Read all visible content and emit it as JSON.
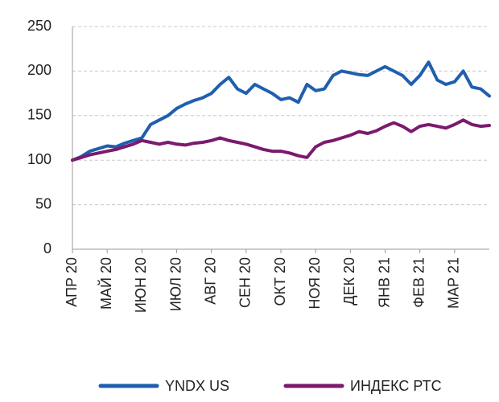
{
  "chart_data": {
    "type": "line",
    "categories": [
      "АПР 20",
      null,
      null,
      null,
      "МАЙ 20",
      null,
      null,
      null,
      "ИЮН 20",
      null,
      null,
      null,
      "ИЮЛ 20",
      null,
      null,
      null,
      "АВГ 20",
      null,
      null,
      null,
      "СЕН 20",
      null,
      null,
      null,
      "ОКТ 20",
      null,
      null,
      null,
      "НОЯ 20",
      null,
      null,
      null,
      "ДЕК 20",
      null,
      null,
      null,
      "ЯНВ 21",
      null,
      null,
      null,
      "ФЕВ 21",
      null,
      null,
      null,
      "МАР 21",
      null,
      null,
      null,
      null
    ],
    "series": [
      {
        "name": "YNDX US",
        "color": "#1f5fad",
        "values": [
          100,
          104,
          110,
          113,
          116,
          115,
          119,
          122,
          125,
          140,
          145,
          150,
          158,
          163,
          167,
          170,
          175,
          185,
          193,
          180,
          175,
          185,
          180,
          175,
          168,
          170,
          165,
          185,
          178,
          180,
          195,
          200,
          198,
          196,
          195,
          200,
          205,
          200,
          195,
          185,
          195,
          210,
          190,
          185,
          188,
          200,
          182,
          180,
          172
        ]
      },
      {
        "name": "ИНДЕКС РТС",
        "color": "#7b1a6e",
        "values": [
          100,
          103,
          106,
          108,
          110,
          112,
          115,
          118,
          122,
          120,
          118,
          120,
          118,
          117,
          119,
          120,
          122,
          125,
          122,
          120,
          118,
          115,
          112,
          110,
          110,
          108,
          105,
          103,
          115,
          120,
          122,
          125,
          128,
          132,
          130,
          133,
          138,
          142,
          138,
          132,
          138,
          140,
          138,
          136,
          140,
          145,
          140,
          138,
          139
        ]
      }
    ],
    "ylim": [
      0,
      250
    ],
    "yticks": [
      0,
      50,
      100,
      150,
      200,
      250
    ],
    "grid": true,
    "legend": "bottom"
  }
}
